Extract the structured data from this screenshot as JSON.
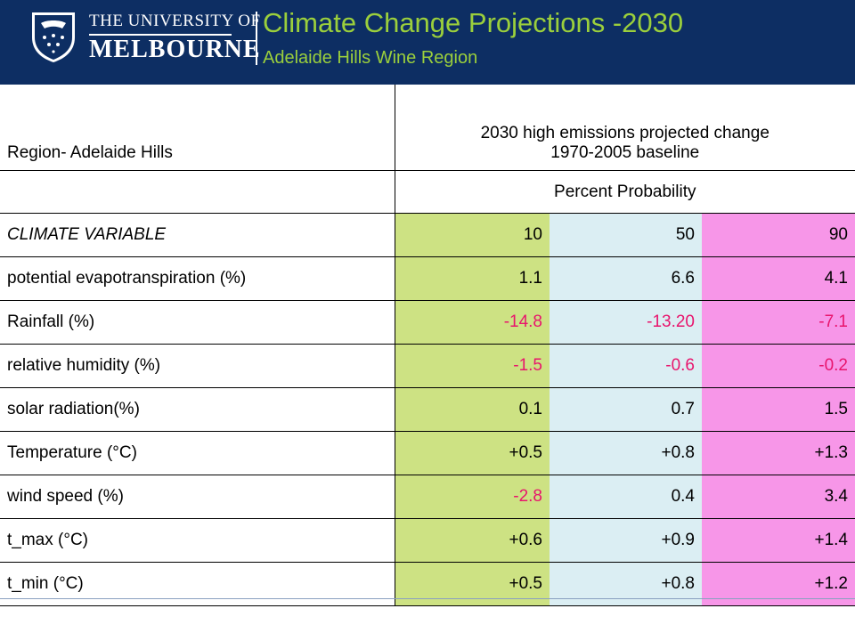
{
  "header": {
    "university_line1": "THE UNIVERSITY OF",
    "university_line2": "MELBOURNE",
    "title": "Climate Change Projections -2030",
    "subtitle": "Adelaide Hills Wine Region"
  },
  "colors": {
    "header_bg": "#0d2e63",
    "title": "#9bcf3c",
    "col_10": "#cde283",
    "col_50": "#dbeef3",
    "col_90": "#f796e8",
    "negative_text": "#e8156d"
  },
  "table": {
    "region_label": "Region- Adelaide Hills",
    "projection_header_line1": "2030 high emissions projected change",
    "projection_header_line2": "1970-2005 baseline",
    "probability_label": "Percent Probability",
    "variable_header": "CLIMATE VARIABLE",
    "probabilities": [
      "10",
      "50",
      "90"
    ],
    "rows": [
      {
        "variable": "potential evapotranspiration (%)",
        "values": [
          "1.1",
          "6.6",
          "4.1"
        ]
      },
      {
        "variable": "Rainfall (%)",
        "values": [
          "-14.8",
          "-13.20",
          "-7.1"
        ]
      },
      {
        "variable": "relative humidity (%)",
        "values": [
          "-1.5",
          "-0.6",
          "-0.2"
        ]
      },
      {
        "variable": "solar radiation(%)",
        "values": [
          "0.1",
          "0.7",
          "1.5"
        ]
      },
      {
        "variable": "Temperature (°C)",
        "values": [
          "+0.5",
          "+0.8",
          "+1.3"
        ]
      },
      {
        "variable": "wind speed (%)",
        "values": [
          "-2.8",
          "0.4",
          "3.4"
        ]
      },
      {
        "variable": "t_max (°C)",
        "values": [
          "+0.6",
          "+0.9",
          "+1.4"
        ]
      },
      {
        "variable": "t_min (°C)",
        "values": [
          "+0.5",
          "+0.8",
          "+1.2"
        ]
      }
    ]
  }
}
